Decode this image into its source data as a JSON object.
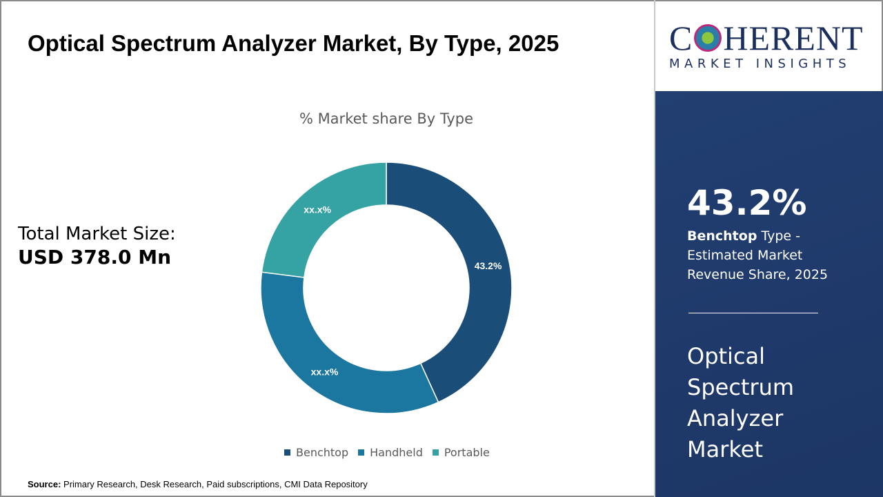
{
  "title": "Optical Spectrum Analyzer Market, By Type, 2025",
  "total": {
    "label": "Total Market Size:",
    "value": "USD 378.0 Mn"
  },
  "source": {
    "label": "Source:",
    "text": " Primary Research, Desk Research, Paid subscriptions, CMI Data Repository"
  },
  "logo": {
    "top": "COHERENT",
    "bottom": "MARKET INSIGHTS"
  },
  "panel": {
    "percent": "43.2%",
    "bold": "Benchtop",
    "desc": " Type - Estimated Market Revenue Share, 2025",
    "market": "Optical Spectrum Analyzer Market"
  },
  "chart_data": {
    "type": "pie",
    "donut": true,
    "title": "% Market share By Type",
    "categories": [
      "Benchtop",
      "Handheld",
      "Portable"
    ],
    "values": [
      43.2,
      33.8,
      23.0
    ],
    "data_labels": [
      "43.2%",
      "xx.x%",
      "xx.x%"
    ],
    "colors": [
      "#1a4e78",
      "#1b77a0",
      "#35a2a3"
    ],
    "legend": "bottom"
  }
}
